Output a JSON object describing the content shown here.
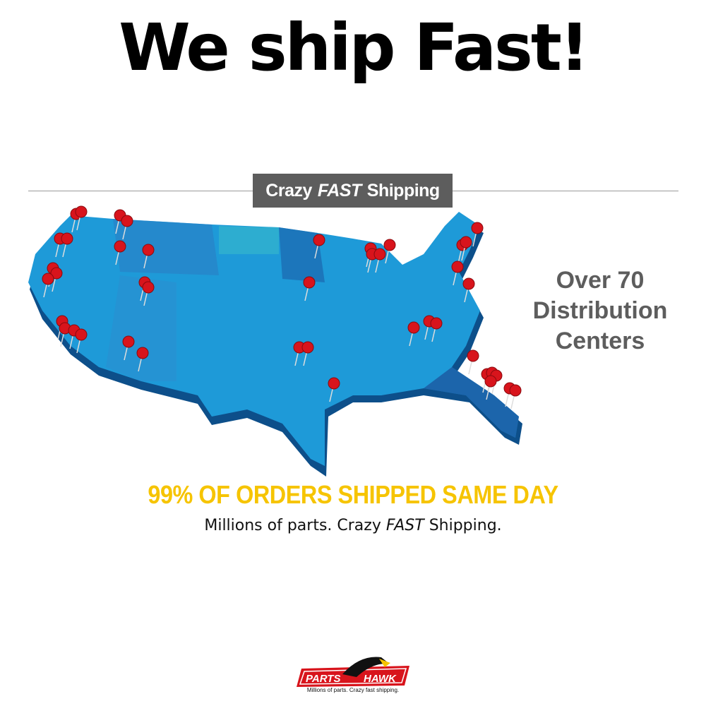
{
  "headline": "We ship Fast!",
  "banner": {
    "part1": "Crazy",
    "part2": "FAST",
    "part3": "Shipping"
  },
  "side_text": [
    "Over 70",
    "Distribution",
    "Centers"
  ],
  "yellow_line": "99% OF ORDERS SHIPPED SAME DAY",
  "tagline": {
    "part1": "Millions of parts. Crazy",
    "part2": "FAST",
    "part3": "Shipping."
  },
  "logo": {
    "word1": "PARTS",
    "word2": "HAWK",
    "slogan": "Millions of parts. Crazy fast shipping."
  },
  "colors": {
    "map_blue": "#1e9ad8",
    "pin_red": "#d8141c",
    "yellow": "#f6c400",
    "banner_gray": "#5d5d5d"
  }
}
